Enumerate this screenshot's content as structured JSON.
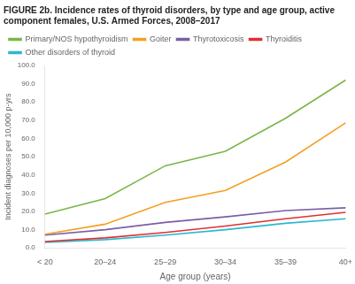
{
  "chart_data": {
    "type": "line",
    "title": "FIGURE 2b. Incidence rates of thyroid disorders, by type and age group, active component females, U.S. Armed Forces, 2008–2017",
    "x_label": "Age group (years)",
    "y_label": "Incident diagnoses per 10,000 p-yrs",
    "categories": [
      "< 20",
      "20–24",
      "25–29",
      "30–34",
      "35–39",
      "40+"
    ],
    "series": [
      {
        "name": "Primary/NOS hypothyroidism",
        "color": "#7ab648",
        "values": [
          18.5,
          27.0,
          45.0,
          53.0,
          71.0,
          92.0
        ]
      },
      {
        "name": "Goiter",
        "color": "#f4a020",
        "values": [
          7.5,
          13.0,
          25.0,
          31.5,
          47.0,
          68.5
        ]
      },
      {
        "name": "Thyrotoxicosis",
        "color": "#7b5ea7",
        "values": [
          7.0,
          10.0,
          14.0,
          17.0,
          20.5,
          22.0
        ]
      },
      {
        "name": "Thyroiditis",
        "color": "#e03030",
        "values": [
          3.5,
          5.5,
          8.5,
          12.0,
          16.0,
          19.5
        ]
      },
      {
        "name": "Other disorders of thyroid",
        "color": "#2ab8d0",
        "values": [
          3.0,
          4.5,
          7.0,
          10.0,
          13.5,
          16.0
        ]
      }
    ],
    "ylim": [
      0,
      100
    ],
    "yticks": [
      {
        "value": 0,
        "label": "0.0"
      },
      {
        "value": 10,
        "label": "10.0"
      },
      {
        "value": 20,
        "label": "20.0"
      },
      {
        "value": 30,
        "label": "30.0"
      },
      {
        "value": 40,
        "label": "40.0"
      },
      {
        "value": 50,
        "label": "50.0"
      },
      {
        "value": 60,
        "label": "60.0"
      },
      {
        "value": 70,
        "label": "70.0"
      },
      {
        "value": 80,
        "label": "80.0"
      },
      {
        "value": 90,
        "label": "90.0"
      },
      {
        "value": 100,
        "label": "100.0"
      }
    ],
    "grid": false,
    "legend": "upper left"
  }
}
